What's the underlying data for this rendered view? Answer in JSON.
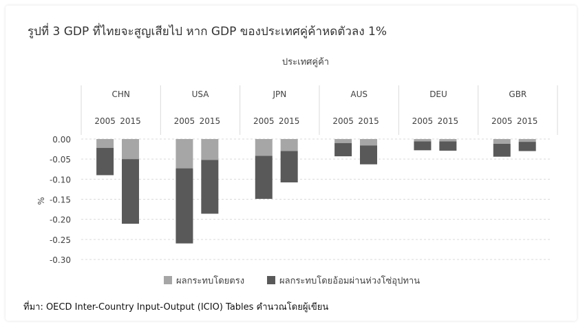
{
  "title": "รูปที่ 3 GDP ที่ไทยจะสูญเสียไป หาก GDP ของประเทศคู่ค้าหดตัวลง 1%",
  "source": "ที่มา: OECD Inter-Country Input-Output (ICIO) Tables คำนวณโดยผู้เขียน",
  "colors": {
    "direct": "#a6a6a6",
    "indirect": "#595959",
    "grid": "#d9d9d9"
  },
  "chart_data": {
    "type": "bar",
    "stacked": true,
    "group_axis_label": "ประเทศคู่ค้า",
    "groups": [
      "CHN",
      "USA",
      "JPN",
      "AUS",
      "DEU",
      "GBR"
    ],
    "years": [
      "2005",
      "2015"
    ],
    "ylabel": "%",
    "ylim": [
      -0.3,
      0.0
    ],
    "yticks": [
      "0.00",
      "-0.05",
      "-0.10",
      "-0.15",
      "-0.20",
      "-0.25",
      "-0.30"
    ],
    "grid": true,
    "legend_position": "bottom",
    "series": [
      {
        "name": "ผลกระทบโดยตรง",
        "values": [
          -0.022,
          -0.05,
          -0.073,
          -0.052,
          -0.042,
          -0.03,
          -0.01,
          -0.016,
          -0.006,
          -0.006,
          -0.012,
          -0.007
        ]
      },
      {
        "name": "ผลกระทบโดยอ้อมผ่านห่วงโซ่อุปทาน",
        "values": [
          -0.068,
          -0.161,
          -0.187,
          -0.134,
          -0.107,
          -0.078,
          -0.033,
          -0.047,
          -0.022,
          -0.023,
          -0.032,
          -0.023
        ]
      }
    ]
  }
}
